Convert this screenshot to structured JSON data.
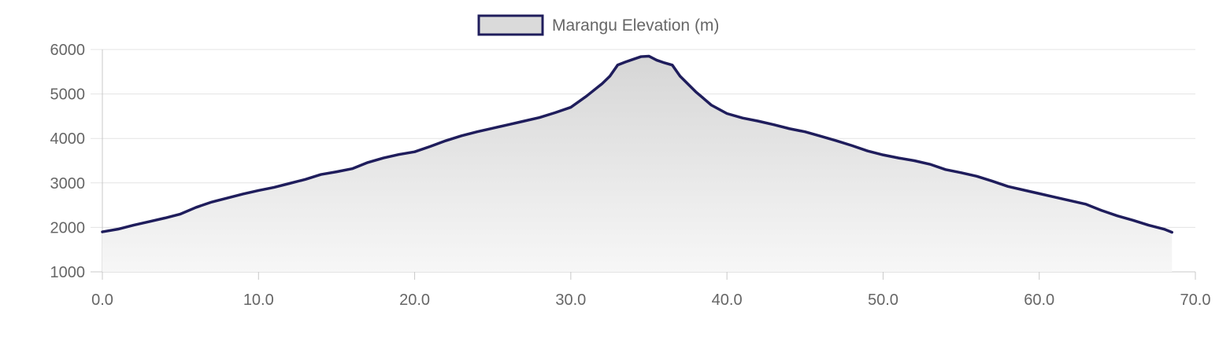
{
  "chart_data": {
    "type": "area",
    "title": "",
    "xlabel": "",
    "ylabel": "",
    "xlim": [
      0,
      70
    ],
    "ylim": [
      1000,
      6000
    ],
    "xticks": [
      "0.0",
      "10.0",
      "20.0",
      "30.0",
      "40.0",
      "50.0",
      "60.0",
      "70.0"
    ],
    "yticks": [
      "1000",
      "2000",
      "3000",
      "4000",
      "5000",
      "6000"
    ],
    "grid": true,
    "legend": {
      "position": "top-center"
    },
    "series": [
      {
        "name": "Marangu Elevation (m)",
        "color": "#1f1d5c",
        "x": [
          0.0,
          1.0,
          2.0,
          3.0,
          4.0,
          5.0,
          6.0,
          7.0,
          8.0,
          9.0,
          10.0,
          11.0,
          12.0,
          13.0,
          14.0,
          15.0,
          16.0,
          17.0,
          18.0,
          19.0,
          20.0,
          21.0,
          22.0,
          23.0,
          24.0,
          25.0,
          26.0,
          27.0,
          28.0,
          29.0,
          30.0,
          31.0,
          32.0,
          32.5,
          33.0,
          33.5,
          34.0,
          34.5,
          35.0,
          35.5,
          36.0,
          36.5,
          37.0,
          38.0,
          39.0,
          40.0,
          41.0,
          42.0,
          43.0,
          44.0,
          45.0,
          46.0,
          47.0,
          48.0,
          49.0,
          50.0,
          51.0,
          52.0,
          53.0,
          54.0,
          55.0,
          56.0,
          57.0,
          58.0,
          59.0,
          60.0,
          61.0,
          62.0,
          63.0,
          64.0,
          65.0,
          66.0,
          67.0,
          68.0,
          68.5
        ],
        "values": [
          1900,
          1960,
          2050,
          2130,
          2210,
          2300,
          2450,
          2570,
          2660,
          2750,
          2830,
          2900,
          2990,
          3080,
          3190,
          3250,
          3320,
          3460,
          3560,
          3640,
          3700,
          3820,
          3950,
          4060,
          4150,
          4230,
          4310,
          4390,
          4470,
          4580,
          4700,
          4950,
          5230,
          5400,
          5650,
          5720,
          5780,
          5840,
          5850,
          5760,
          5700,
          5650,
          5400,
          5050,
          4750,
          4560,
          4460,
          4390,
          4310,
          4220,
          4150,
          4050,
          3950,
          3840,
          3720,
          3630,
          3560,
          3500,
          3420,
          3300,
          3230,
          3150,
          3040,
          2920,
          2840,
          2760,
          2680,
          2600,
          2520,
          2380,
          2260,
          2160,
          2050,
          1960,
          1890
        ]
      }
    ]
  }
}
